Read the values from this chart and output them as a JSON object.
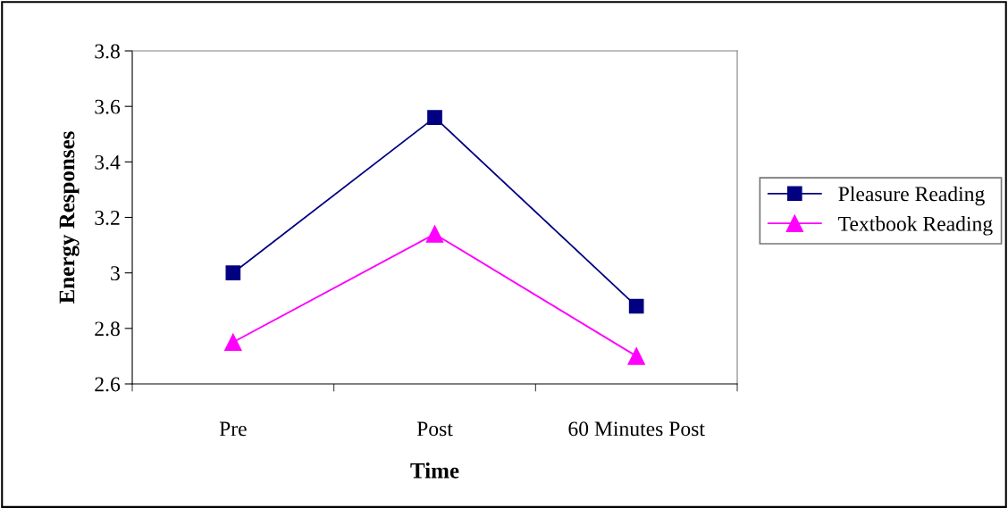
{
  "chart_data": {
    "type": "line",
    "xlabel": "Time",
    "ylabel": "Energy Responses",
    "categories": [
      "Pre",
      "Post",
      "60 Minutes Post"
    ],
    "series": [
      {
        "name": "Pleasure Reading",
        "color": "#000080",
        "marker": "square",
        "values": [
          3.0,
          3.56,
          2.88
        ]
      },
      {
        "name": "Textbook Reading",
        "color": "#ff00ff",
        "marker": "triangle",
        "values": [
          2.75,
          3.14,
          2.7
        ]
      }
    ],
    "ylim": [
      2.6,
      3.8
    ],
    "yticks": [
      2.6,
      2.8,
      3,
      3.2,
      3.4,
      3.6,
      3.8
    ],
    "grid": false,
    "legend": "right",
    "line_style": "solid"
  }
}
